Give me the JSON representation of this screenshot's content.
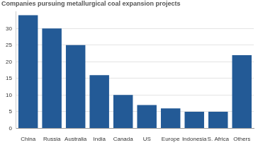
{
  "chart_data": {
    "type": "bar",
    "title": "Companies pursuing metallurgical coal expansion projects",
    "categories": [
      "China",
      "Russia",
      "Australia",
      "India",
      "Canada",
      "US",
      "Europe",
      "Indonesia",
      "S. Africa",
      "Others"
    ],
    "values": [
      34,
      30,
      25,
      16,
      10,
      7,
      6,
      5,
      5,
      22
    ],
    "color": "#235a96",
    "ylim": [
      0,
      35
    ],
    "yticks": [
      0,
      5,
      10,
      15,
      20,
      25,
      30
    ],
    "grid": true
  }
}
